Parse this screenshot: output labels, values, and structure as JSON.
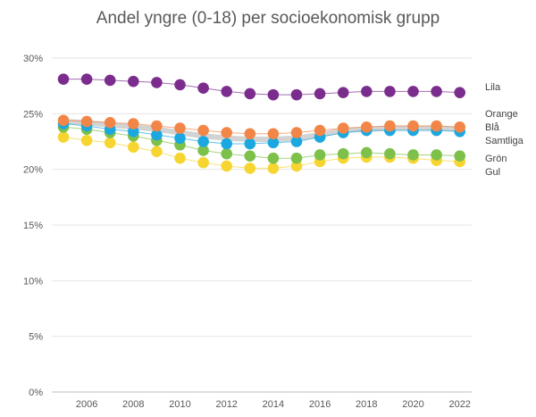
{
  "chart_data": {
    "type": "line",
    "title": "Andel yngre (0-18) per socioekonomisk grupp",
    "xlabel": "",
    "ylabel": "",
    "x": [
      2005,
      2006,
      2007,
      2008,
      2009,
      2010,
      2011,
      2012,
      2013,
      2014,
      2015,
      2016,
      2017,
      2018,
      2019,
      2020,
      2021,
      2022
    ],
    "x_tick_labels": [
      "2006",
      "2008",
      "2010",
      "2012",
      "2014",
      "2016",
      "2018",
      "2020",
      "2022"
    ],
    "y_tick_labels": [
      "0%",
      "5%",
      "10%",
      "15%",
      "20%",
      "25%",
      "30%"
    ],
    "ylim": [
      0,
      30
    ],
    "grid": true,
    "legend": "right (labels at series ends)",
    "series": [
      {
        "name": "Lila",
        "color": "#7B2D8E",
        "values": [
          28.1,
          28.1,
          28.0,
          27.9,
          27.8,
          27.6,
          27.3,
          27.0,
          26.8,
          26.7,
          26.7,
          26.8,
          26.9,
          27.0,
          27.0,
          27.0,
          27.0,
          26.9
        ]
      },
      {
        "name": "Orange",
        "color": "#F28648",
        "values": [
          24.4,
          24.3,
          24.2,
          24.1,
          23.9,
          23.7,
          23.5,
          23.3,
          23.2,
          23.2,
          23.3,
          23.5,
          23.7,
          23.8,
          23.9,
          23.9,
          23.9,
          23.8
        ]
      },
      {
        "name": "Blå",
        "color": "#1BA8E0",
        "values": [
          24.1,
          23.9,
          23.6,
          23.4,
          23.1,
          22.8,
          22.5,
          22.3,
          22.3,
          22.4,
          22.5,
          22.9,
          23.3,
          23.5,
          23.5,
          23.5,
          23.5,
          23.4
        ]
      },
      {
        "name": "Samtliga",
        "color": "#C8C8C8",
        "values": [
          24.3,
          24.2,
          24.0,
          23.8,
          23.6,
          23.3,
          23.0,
          22.8,
          22.7,
          22.7,
          22.8,
          23.1,
          23.5,
          23.6,
          23.7,
          23.7,
          23.7,
          23.6
        ]
      },
      {
        "name": "Grön",
        "color": "#7DC04A",
        "values": [
          23.8,
          23.6,
          23.3,
          23.0,
          22.6,
          22.2,
          21.7,
          21.4,
          21.2,
          21.0,
          21.0,
          21.3,
          21.4,
          21.5,
          21.4,
          21.3,
          21.3,
          21.2
        ]
      },
      {
        "name": "Gul",
        "color": "#F7D531",
        "values": [
          22.9,
          22.6,
          22.4,
          22.0,
          21.6,
          21.0,
          20.6,
          20.3,
          20.1,
          20.1,
          20.3,
          20.7,
          21.0,
          21.1,
          21.1,
          21.0,
          20.8,
          20.7
        ]
      }
    ]
  }
}
